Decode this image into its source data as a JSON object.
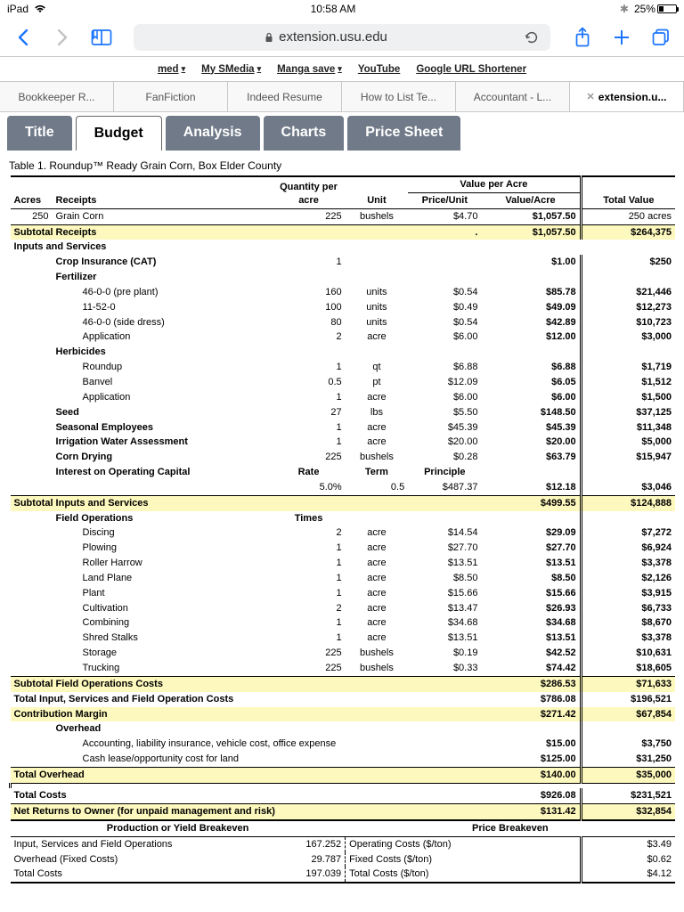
{
  "statusbar": {
    "device": "iPad",
    "time": "10:58 AM",
    "battery_pct": "25%"
  },
  "toolbar": {
    "url_host": "extension.usu.edu"
  },
  "bookmarks": [
    "med",
    "My SMedia",
    "Manga save",
    "YouTube",
    "Google URL Shortener"
  ],
  "tabs": [
    {
      "label": "Bookkeeper R..."
    },
    {
      "label": "FanFiction"
    },
    {
      "label": "Indeed Resume"
    },
    {
      "label": "How to List Te..."
    },
    {
      "label": "Accountant - L..."
    },
    {
      "label": "extension.u...",
      "active": true
    }
  ],
  "page_tabs": [
    "Title",
    "Budget",
    "Analysis",
    "Charts",
    "Price Sheet"
  ],
  "active_page_tab": "Budget",
  "table_caption": "Table 1. Roundup™ Ready Grain Corn, Box Elder County",
  "col": {
    "acres": "Acres",
    "receipts": "Receipts",
    "qty": "Quantity per acre",
    "unit": "Unit",
    "vpa": "Value per Acre",
    "pu": "Price/Unit",
    "va": "Value/Acre",
    "tv": "Total Value"
  },
  "acres": "250",
  "acres_label": "250 acres",
  "receipt": {
    "name": "Grain Corn",
    "qty": "225",
    "unit": "bushels",
    "pu": "$4.70",
    "va": "$1,057.50"
  },
  "subtotal_receipts": {
    "label": "Subtotal Receipts",
    "pu": ".",
    "va": "$1,057.50",
    "tv": "$264,375"
  },
  "inputs": {
    "header": "Inputs and Services",
    "crop_insurance": {
      "label": "Crop Insurance (CAT)",
      "qty": "1",
      "va": "$1.00",
      "tv": "$250"
    },
    "fert_header": "Fertilizer",
    "fert": [
      {
        "label": "46-0-0 (pre plant)",
        "qty": "160",
        "unit": "units",
        "pu": "$0.54",
        "va": "$85.78",
        "tv": "$21,446"
      },
      {
        "label": "11-52-0",
        "qty": "100",
        "unit": "units",
        "pu": "$0.49",
        "va": "$49.09",
        "tv": "$12,273"
      },
      {
        "label": "46-0-0 (side dress)",
        "qty": "80",
        "unit": "units",
        "pu": "$0.54",
        "va": "$42.89",
        "tv": "$10,723"
      },
      {
        "label": "Application",
        "qty": "2",
        "unit": "acre",
        "pu": "$6.00",
        "va": "$12.00",
        "tv": "$3,000"
      }
    ],
    "herb_header": "Herbicides",
    "herb": [
      {
        "label": "Roundup",
        "qty": "1",
        "unit": "qt",
        "pu": "$6.88",
        "va": "$6.88",
        "tv": "$1,719"
      },
      {
        "label": "Banvel",
        "qty": "0.5",
        "unit": "pt",
        "pu": "$12.09",
        "va": "$6.05",
        "tv": "$1,512"
      },
      {
        "label": "Application",
        "qty": "1",
        "unit": "acre",
        "pu": "$6.00",
        "va": "$6.00",
        "tv": "$1,500"
      }
    ],
    "seed": {
      "label": "Seed",
      "qty": "27",
      "unit": "lbs",
      "pu": "$5.50",
      "va": "$148.50",
      "tv": "$37,125"
    },
    "emp": {
      "label": "Seasonal Employees",
      "qty": "1",
      "unit": "acre",
      "pu": "$45.39",
      "va": "$45.39",
      "tv": "$11,348"
    },
    "irr": {
      "label": "Irrigation Water Assessment",
      "qty": "1",
      "unit": "acre",
      "pu": "$20.00",
      "va": "$20.00",
      "tv": "$5,000"
    },
    "dry": {
      "label": "Corn Drying",
      "qty": "225",
      "unit": "bushels",
      "pu": "$0.28",
      "va": "$63.79",
      "tv": "$15,947"
    },
    "int": {
      "label": "Interest on Operating Capital",
      "qty_hdr": "Rate",
      "unit_hdr": "Term",
      "pu_hdr": "Principle",
      "rate": "5.0%",
      "term": "0.5",
      "princ": "$487.37",
      "va": "$12.18",
      "tv": "$3,046"
    }
  },
  "sub_inputs": {
    "label": "Subtotal Inputs and Services",
    "va": "$499.55",
    "tv": "$124,888"
  },
  "fieldops": {
    "header": "Field Operations",
    "times_hdr": "Times",
    "rows": [
      {
        "label": "Discing",
        "qty": "2",
        "unit": "acre",
        "pu": "$14.54",
        "va": "$29.09",
        "tv": "$7,272"
      },
      {
        "label": "Plowing",
        "qty": "1",
        "unit": "acre",
        "pu": "$27.70",
        "va": "$27.70",
        "tv": "$6,924"
      },
      {
        "label": "Roller Harrow",
        "qty": "1",
        "unit": "acre",
        "pu": "$13.51",
        "va": "$13.51",
        "tv": "$3,378"
      },
      {
        "label": "Land Plane",
        "qty": "1",
        "unit": "acre",
        "pu": "$8.50",
        "va": "$8.50",
        "tv": "$2,126"
      },
      {
        "label": "Plant",
        "qty": "1",
        "unit": "acre",
        "pu": "$15.66",
        "va": "$15.66",
        "tv": "$3,915"
      },
      {
        "label": "Cultivation",
        "qty": "2",
        "unit": "acre",
        "pu": "$13.47",
        "va": "$26.93",
        "tv": "$6,733"
      },
      {
        "label": "Combining",
        "qty": "1",
        "unit": "acre",
        "pu": "$34.68",
        "va": "$34.68",
        "tv": "$8,670"
      },
      {
        "label": "Shred Stalks",
        "qty": "1",
        "unit": "acre",
        "pu": "$13.51",
        "va": "$13.51",
        "tv": "$3,378"
      },
      {
        "label": "Storage",
        "qty": "225",
        "unit": "bushels",
        "pu": "$0.19",
        "va": "$42.52",
        "tv": "$10,631"
      },
      {
        "label": "Trucking",
        "qty": "225",
        "unit": "bushels",
        "pu": "$0.33",
        "va": "$74.42",
        "tv": "$18,605"
      }
    ]
  },
  "sub_field": {
    "label": "Subtotal Field Operations  Costs",
    "va": "$286.53",
    "tv": "$71,633"
  },
  "total_isf": {
    "label": "Total Input, Services and Field Operation Costs",
    "va": "$786.08",
    "tv": "$196,521"
  },
  "contrib": {
    "label": "Contribution Margin",
    "va": "$271.42",
    "tv": "$67,854"
  },
  "overhead": {
    "header": "Overhead",
    "rows": [
      {
        "label": "Accounting, liability insurance, vehicle cost, office expense",
        "va": "$15.00",
        "tv": "$3,750"
      },
      {
        "label": "Cash lease/opportunity cost for land",
        "va": "$125.00",
        "tv": "$31,250"
      }
    ]
  },
  "total_overhead": {
    "label": "Total Overhead",
    "va": "$140.00",
    "tv": "$35,000"
  },
  "total_costs": {
    "label": "Total Costs",
    "va": "$926.08",
    "tv": "$231,521"
  },
  "net_returns": {
    "label": "Net Returns to Owner (for unpaid management and risk)",
    "va": "$131.42",
    "tv": "$32,854"
  },
  "breakeven": {
    "prod_hdr": "Production or Yield Breakeven",
    "price_hdr": "Price Breakeven",
    "rows": [
      {
        "a": "Input, Services and Field Operations",
        "b": "167.252",
        "c": "Operating Costs ($/ton)",
        "d": "$3.49"
      },
      {
        "a": "Overhead (Fixed Costs)",
        "b": "29.787",
        "c": "Fixed Costs ($/ton)",
        "d": "$0.62"
      },
      {
        "a": "Total Costs",
        "b": "197.039",
        "c": "Total Costs ($/ton)",
        "d": "$4.12"
      }
    ]
  },
  "colors": {
    "tab_bg": "#707a88",
    "accent": "#1a74ff",
    "highlight": "#fdf8bd"
  }
}
